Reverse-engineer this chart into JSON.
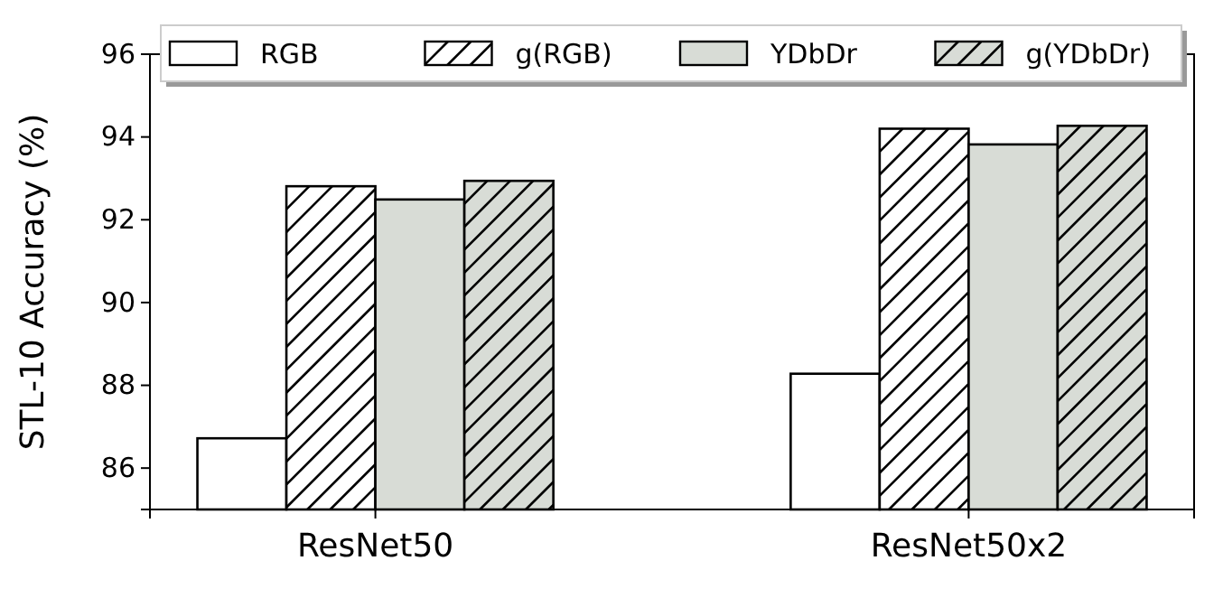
{
  "chart_data": {
    "type": "bar",
    "ylabel": "STL-10 Accuracy (%)",
    "categories": [
      "ResNet50",
      "ResNet50x2"
    ],
    "series": [
      {
        "name": "RGB",
        "color": "#ffffff",
        "values": [
          86.72,
          88.28
        ]
      },
      {
        "name": "g(RGB)",
        "color": "#ffffff",
        "values": [
          92.81,
          94.2
        ]
      },
      {
        "name": "YDbDr",
        "color": "#d8dcd6",
        "values": [
          92.49,
          93.82
        ]
      },
      {
        "name": "g(YDbDr)",
        "color": "#d8dcd6",
        "values": [
          92.94,
          94.27
        ]
      }
    ],
    "ylim": [
      85,
      96
    ],
    "yticks": [
      86,
      88,
      90,
      92,
      94,
      96
    ],
    "grid": false,
    "legend": "top"
  }
}
